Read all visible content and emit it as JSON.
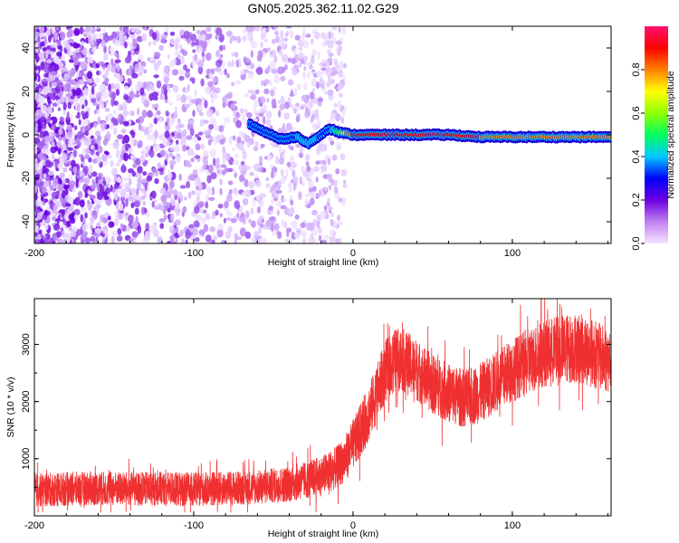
{
  "title": "GN05.2025.362.11.02.G29",
  "chart_data": [
    {
      "type": "heatmap",
      "name": "spectrogram",
      "xlabel": "Height of straight line (km)",
      "ylabel": "Frequency (Hz)",
      "xlim": [
        -200,
        162
      ],
      "ylim": [
        -50,
        50
      ],
      "xticks": [
        -200,
        -100,
        0,
        100
      ],
      "xtick_labels": [
        "-200",
        "-100",
        "0",
        "100"
      ],
      "yticks": [
        -40,
        -20,
        0,
        20,
        40
      ],
      "ytick_labels": [
        "-40",
        "-20",
        "0",
        "20",
        "40"
      ],
      "colorbar": {
        "label": "Normalized spectral amplitude",
        "range": [
          0,
          1
        ],
        "ticks": [
          0.0,
          0.2,
          0.4,
          0.6,
          0.8
        ],
        "tick_labels": [
          "0.0",
          "0.2",
          "0.4",
          "0.6",
          "0.8"
        ],
        "colors": [
          "#f4e4ff",
          "#c080f0",
          "#6a00e0",
          "#0000ff",
          "#00c8ff",
          "#00ff60",
          "#90ff00",
          "#ffff00",
          "#ff8000",
          "#ff0000",
          "#ff1070"
        ]
      },
      "signal_track": {
        "x": [
          -65,
          -55,
          -45,
          -35,
          -28,
          -22,
          -15,
          -8,
          0,
          20,
          60,
          80,
          100,
          120,
          140,
          162
        ],
        "y": [
          5,
          1,
          -2,
          -1,
          -4,
          -1,
          3,
          1,
          0,
          0,
          0,
          -1,
          -1,
          -1,
          -1,
          -1
        ],
        "amplitude": [
          0.25,
          0.25,
          0.25,
          0.35,
          0.4,
          0.35,
          0.3,
          0.6,
          0.9,
          0.9,
          0.85,
          0.85,
          0.8,
          0.85,
          0.8,
          0.75
        ]
      },
      "noise_region_x": [
        -200,
        -15
      ]
    },
    {
      "type": "line",
      "name": "snr",
      "xlabel": "Height of straight line (km)",
      "ylabel": "SNR (10 * v/v)",
      "xlim": [
        -200,
        162
      ],
      "ylim": [
        0,
        3800
      ],
      "xticks": [
        -200,
        -100,
        0,
        100
      ],
      "xtick_labels": [
        "-200",
        "-100",
        "0",
        "100"
      ],
      "yticks": [
        1000,
        2000,
        3000
      ],
      "ytick_labels": [
        "1000",
        "2000",
        "3000"
      ],
      "color": "#f03030",
      "series": [
        {
          "x": [
            -200,
            -180,
            -160,
            -140,
            -120,
            -100,
            -80,
            -60,
            -40,
            -30,
            -20,
            -10,
            -5,
            0,
            5,
            10,
            15,
            20,
            25,
            30,
            40,
            50,
            60,
            70,
            80,
            90,
            100,
            110,
            120,
            130,
            140,
            150,
            162
          ],
          "y": [
            450,
            470,
            480,
            470,
            480,
            460,
            480,
            500,
            560,
            620,
            700,
            850,
            1000,
            1250,
            1500,
            1800,
            2150,
            2500,
            2700,
            2750,
            2550,
            2300,
            2150,
            2050,
            2150,
            2350,
            2550,
            2700,
            2850,
            2900,
            2950,
            2850,
            2700
          ],
          "noise_amplitude": [
            300,
            300,
            300,
            300,
            300,
            300,
            300,
            300,
            320,
            330,
            350,
            380,
            400,
            450,
            480,
            500,
            520,
            550,
            560,
            560,
            540,
            520,
            520,
            520,
            520,
            540,
            560,
            580,
            600,
            620,
            620,
            600,
            580
          ]
        }
      ]
    }
  ]
}
